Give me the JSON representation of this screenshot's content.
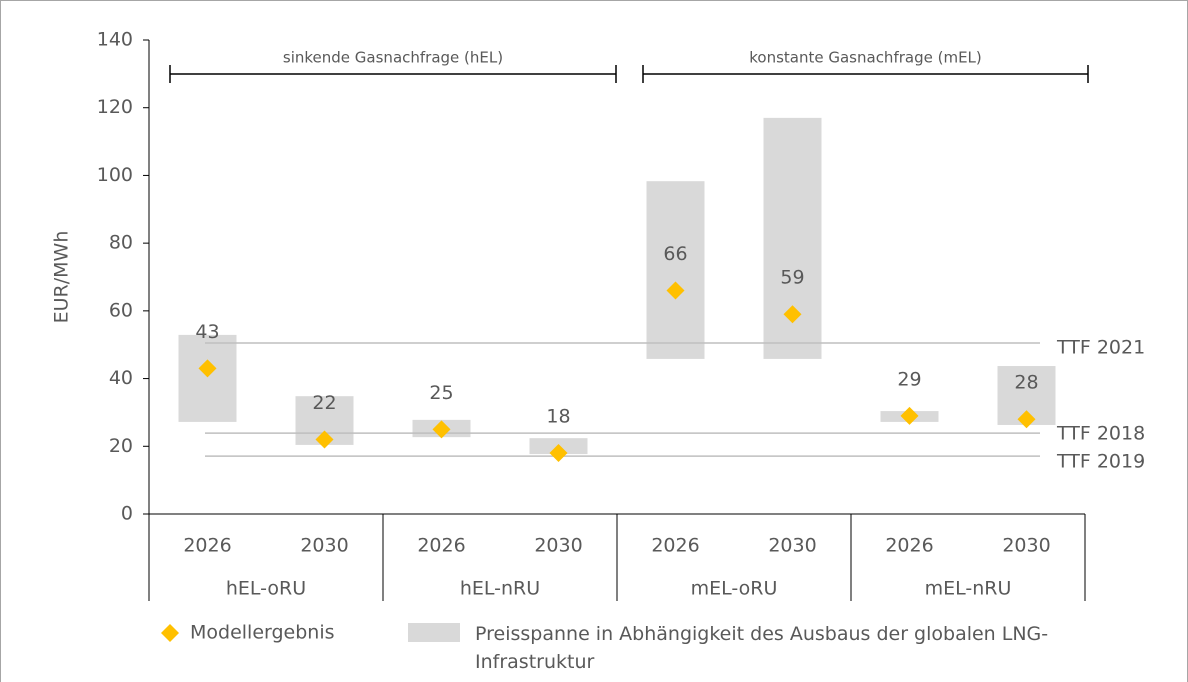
{
  "chart_data": {
    "type": "range_marker",
    "y_label": "EUR/MWh",
    "categories": [
      "2026",
      "2030",
      "2026",
      "2030",
      "2026",
      "2030",
      "2026",
      "2030"
    ],
    "groups": [
      "hEL-oRU",
      "hEL-nRU",
      "mEL-oRU",
      "mEL-nRU"
    ],
    "series": [
      {
        "name": "Modellergebnis",
        "color": "#ffc000",
        "values": [
          43,
          22,
          25,
          18,
          66,
          59,
          29,
          28
        ]
      }
    ],
    "ranges": {
      "name": "Preisspanne in Abhängigkeit des Ausbaus der globalen LNG-Infrastruktur",
      "color": "#d9d9d9",
      "low": [
        27.2,
        20.4,
        22.7,
        17.7,
        45.8,
        45.8,
        27.2,
        26.3
      ],
      "high": [
        52.9,
        34.8,
        27.8,
        22.4,
        98.3,
        117,
        30.4,
        43.7
      ]
    },
    "reference_lines": [
      {
        "label": "TTF 2021",
        "value": 50.5
      },
      {
        "label": "TTF 2018",
        "value": 23.9
      },
      {
        "label": "TTF 2019",
        "value": 17.1
      }
    ],
    "annotations": [
      "sinkende Gasnachfrage (hEL)",
      "konstante Gasnachfrage (mEL)"
    ],
    "ylim": [
      0,
      140
    ],
    "yticks": [
      0,
      20,
      40,
      60,
      80,
      100,
      120,
      140
    ]
  }
}
